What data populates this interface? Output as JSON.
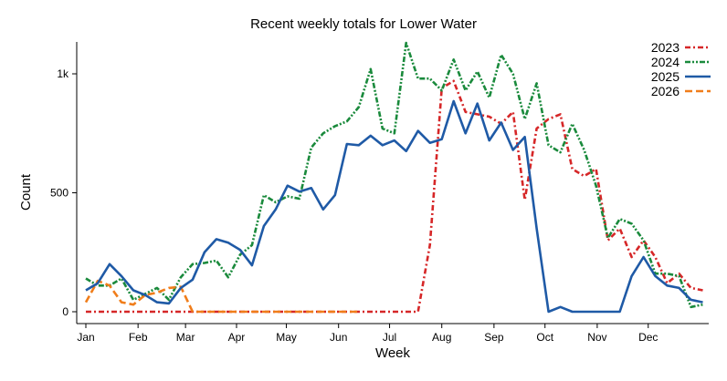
{
  "chart_data": {
    "type": "line",
    "title": "Recent weekly totals for Lower Water",
    "xlabel": "Week",
    "ylabel": "Count",
    "ylim": [
      0,
      1150
    ],
    "yticks": [
      0,
      500,
      1000
    ],
    "ytick_labels": [
      "0",
      "500",
      "1k"
    ],
    "x_tick_labels": [
      "Jan",
      "Feb",
      "Mar",
      "Apr",
      "May",
      "Jun",
      "Jul",
      "Aug",
      "Sep",
      "Oct",
      "Nov",
      "Dec"
    ],
    "x_tick_weeks": [
      1,
      5.4,
      9.4,
      13.7,
      17.9,
      22.3,
      26.6,
      31,
      35.4,
      39.7,
      44.1,
      48.4
    ],
    "xlim": [
      1,
      53.5
    ],
    "grid": false,
    "legend_position": "top-right",
    "series": [
      {
        "name": "2023",
        "color": "#d62728",
        "dash": "6,3,2,3",
        "x": [
          1,
          2,
          3,
          4,
          5,
          6,
          7,
          8,
          9,
          10,
          11,
          12,
          13,
          14,
          15,
          16,
          17,
          18,
          19,
          20,
          21,
          22,
          23,
          24,
          25,
          26,
          27,
          28,
          29,
          30,
          31,
          32,
          33,
          34,
          35,
          36,
          37,
          38,
          39,
          40,
          41,
          42,
          43,
          44,
          45,
          46,
          47,
          48,
          49,
          50,
          51,
          52,
          53
        ],
        "values": [
          0,
          0,
          0,
          0,
          0,
          0,
          0,
          0,
          0,
          0,
          0,
          0,
          0,
          0,
          0,
          0,
          0,
          0,
          0,
          0,
          0,
          0,
          0,
          0,
          0,
          0,
          0,
          0,
          0,
          280,
          940,
          970,
          840,
          830,
          820,
          790,
          840,
          470,
          770,
          810,
          830,
          600,
          570,
          600,
          300,
          350,
          230,
          300,
          230,
          120,
          160,
          100,
          90
        ]
      },
      {
        "name": "2024",
        "color": "#1a8a3c",
        "dash": "6,2,2,2,2,2",
        "x": [
          1,
          2,
          3,
          4,
          5,
          6,
          7,
          8,
          9,
          10,
          11,
          12,
          13,
          14,
          15,
          16,
          17,
          18,
          19,
          20,
          21,
          22,
          23,
          24,
          25,
          26,
          27,
          28,
          29,
          30,
          31,
          32,
          33,
          34,
          35,
          36,
          37,
          38,
          39,
          40,
          41,
          42,
          43,
          44,
          45,
          46,
          47,
          48,
          49,
          50,
          51,
          52,
          53
        ],
        "values": [
          140,
          110,
          110,
          140,
          50,
          75,
          100,
          50,
          145,
          200,
          205,
          215,
          145,
          240,
          280,
          490,
          460,
          485,
          475,
          690,
          750,
          780,
          800,
          860,
          1020,
          770,
          750,
          1130,
          980,
          980,
          930,
          1060,
          930,
          1010,
          900,
          1080,
          1000,
          810,
          960,
          700,
          670,
          790,
          680,
          530,
          310,
          390,
          370,
          300,
          160,
          160,
          150,
          20,
          30
        ]
      },
      {
        "name": "2025",
        "color": "#1f5aa6",
        "dash": "",
        "x": [
          1,
          2,
          3,
          4,
          5,
          6,
          7,
          8,
          9,
          10,
          11,
          12,
          13,
          14,
          15,
          16,
          17,
          18,
          19,
          20,
          21,
          22,
          23,
          24,
          25,
          26,
          27,
          28,
          29,
          30,
          31,
          32,
          33,
          34,
          35,
          36,
          37,
          38,
          39,
          40,
          41,
          42,
          43,
          44,
          45,
          46,
          47,
          48,
          49,
          50,
          51,
          52,
          53
        ],
        "values": [
          90,
          120,
          200,
          150,
          90,
          70,
          40,
          35,
          100,
          135,
          250,
          305,
          290,
          260,
          195,
          360,
          430,
          530,
          505,
          520,
          430,
          490,
          705,
          700,
          740,
          700,
          720,
          675,
          760,
          710,
          725,
          885,
          750,
          875,
          720,
          795,
          680,
          735,
          350,
          0,
          20,
          0,
          0,
          0,
          0,
          0,
          150,
          230,
          150,
          110,
          100,
          50,
          40
        ]
      },
      {
        "name": "2026",
        "color": "#f07d1a",
        "dash": "8,4",
        "x": [
          1,
          2,
          3,
          4,
          5,
          6,
          7,
          8,
          9,
          10,
          11,
          12,
          13,
          14,
          15,
          16,
          17,
          18,
          19,
          20,
          21,
          22,
          23,
          24
        ],
        "values": [
          40,
          130,
          110,
          40,
          30,
          70,
          80,
          100,
          105,
          0,
          0,
          0,
          0,
          0,
          0,
          0,
          0,
          0,
          0,
          0,
          0,
          0,
          0,
          0
        ]
      }
    ]
  }
}
